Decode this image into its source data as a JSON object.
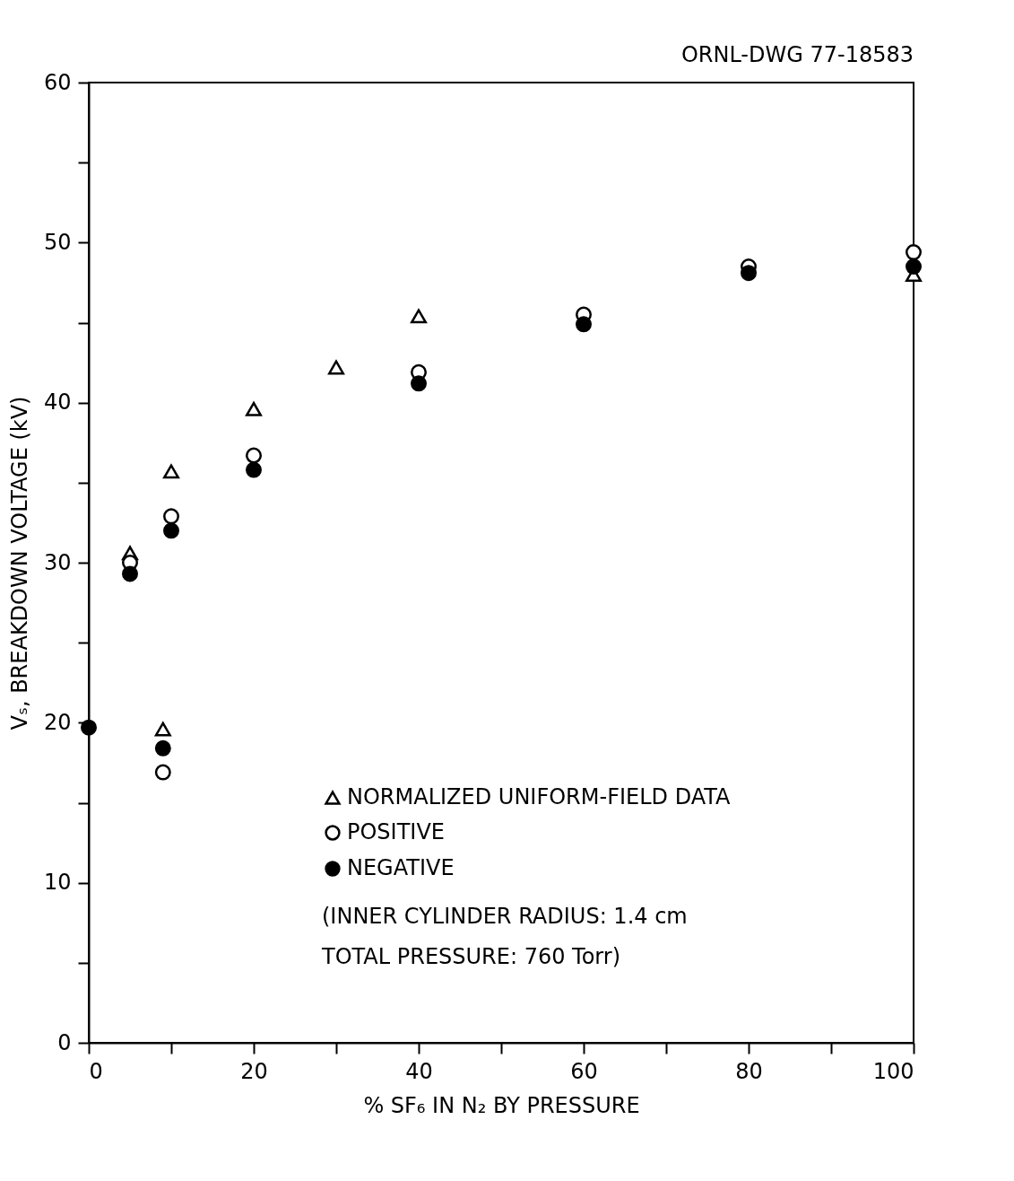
{
  "chart_data": {
    "type": "scatter",
    "xlabel": "% SF₆ IN N₂ BY PRESSURE",
    "ylabel": "Vₛ, BREAKDOWN VOLTAGE (kV)",
    "xlim": [
      0,
      100
    ],
    "xticks": [
      0,
      {
        "value": 10,
        "label": null
      },
      20,
      {
        "value": 30,
        "label": null
      },
      40,
      {
        "value": 50,
        "label": null
      },
      60,
      {
        "value": 70,
        "label": null
      },
      80,
      {
        "value": 90,
        "label": null
      },
      100
    ],
    "ylim": [
      0,
      60
    ],
    "yticks": [
      0,
      {
        "value": 5,
        "label": null
      },
      10,
      {
        "value": 15,
        "label": null
      },
      20,
      {
        "value": 25,
        "label": null
      },
      30,
      {
        "value": 35,
        "label": null
      },
      40,
      {
        "value": 45,
        "label": null
      },
      50,
      {
        "value": 55,
        "label": null
      },
      60
    ],
    "grid": false,
    "legend": "bottom right",
    "series": [
      {
        "name": "NORMALIZED UNIFORM-FIELD DATA",
        "color": "#000000",
        "marker": "triangle",
        "x": [
          5,
          10,
          20,
          30,
          40,
          100,
          9
        ],
        "values": [
          30.6,
          35.7,
          39.6,
          42.2,
          45.4,
          48.0,
          19.6
        ]
      },
      {
        "name": "POSITIVE",
        "color": "#000000",
        "marker": "circle",
        "x": [
          5,
          10,
          20,
          40,
          60,
          80,
          100,
          9
        ],
        "values": [
          30.0,
          32.9,
          36.7,
          41.9,
          45.5,
          48.5,
          49.4,
          16.9
        ]
      },
      {
        "name": "NEGATIVE",
        "color": "#000000",
        "marker": "circle",
        "x": [
          0,
          5,
          10,
          20,
          40,
          60,
          80,
          100,
          9
        ],
        "values": [
          19.7,
          29.3,
          32.0,
          35.8,
          41.2,
          44.9,
          48.1,
          48.5,
          18.4
        ]
      }
    ],
    "annotations": [
      "ORNL-DWG 77-18583",
      "(INNER CYLINDER RADIUS: 1.4 cm",
      "TOTAL PRESSURE: 760 Torr)"
    ]
  }
}
